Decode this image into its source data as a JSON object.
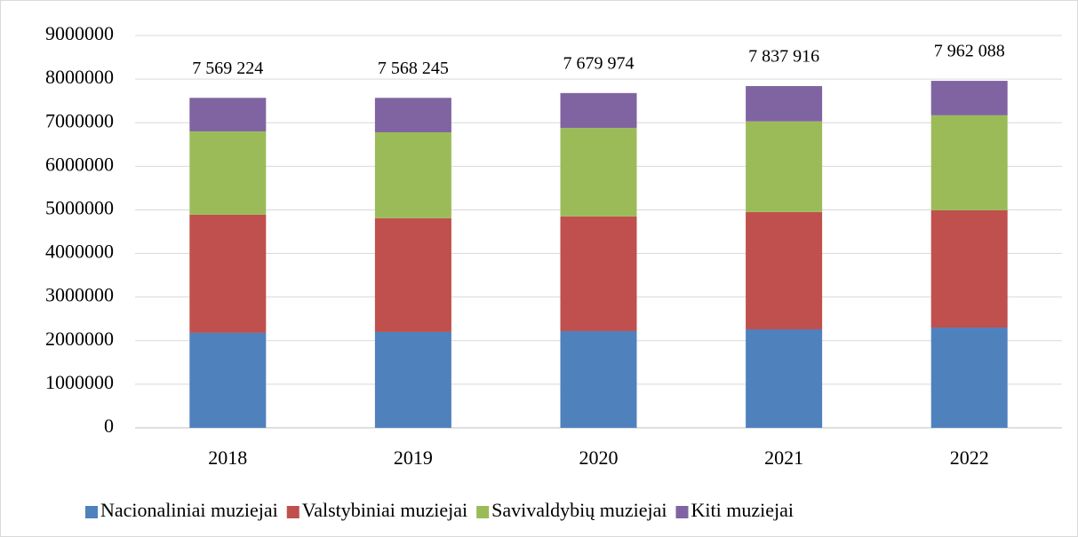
{
  "chart_data": {
    "type": "stacked_bar",
    "categories": [
      "2018",
      "2019",
      "2020",
      "2021",
      "2022"
    ],
    "series": [
      {
        "name": "Nacionaliniai muziejai",
        "color": "#4f81bd",
        "values": [
          2180000,
          2200000,
          2220000,
          2260000,
          2300000
        ]
      },
      {
        "name": "Valstybiniai muziejai",
        "color": "#c0504d",
        "values": [
          2710000,
          2610000,
          2630000,
          2690000,
          2690000
        ]
      },
      {
        "name": "Savivaldybių muziejai",
        "color": "#9bbb59",
        "values": [
          1910000,
          1970000,
          2030000,
          2080000,
          2180000
        ]
      },
      {
        "name": "Kiti muziejai",
        "color": "#8064a2",
        "values": [
          770000,
          790000,
          800000,
          810000,
          790000
        ]
      }
    ],
    "totals": [
      7569224,
      7568245,
      7679974,
      7837916,
      7962088
    ],
    "total_labels": [
      "7 569 224",
      "7 568 245",
      "7 679 974",
      "7 837 916",
      "7 962 088"
    ],
    "ylim": [
      0,
      9000000
    ],
    "yticks": [
      0,
      1000000,
      2000000,
      3000000,
      4000000,
      5000000,
      6000000,
      7000000,
      8000000,
      9000000
    ],
    "grid": true,
    "legend": "bottom"
  }
}
